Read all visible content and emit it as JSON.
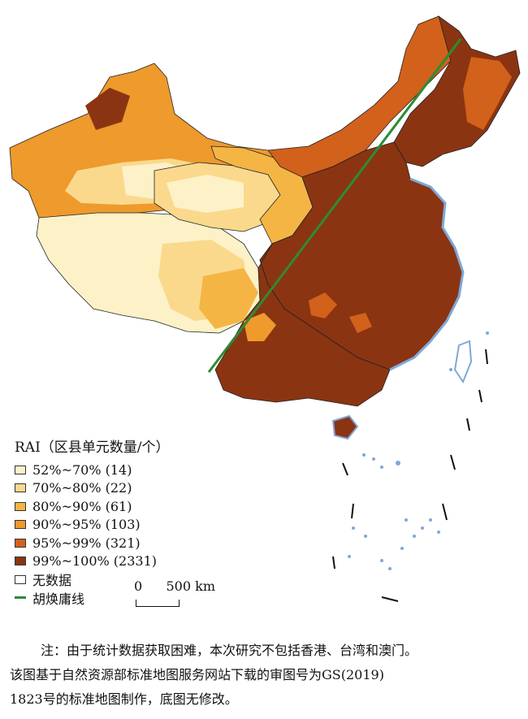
{
  "legend": {
    "title": "RAI（区县单元数量/个）",
    "classes": [
      {
        "label": "52%~70% (14)",
        "color": "#fdf1c8"
      },
      {
        "label": "70%~80% (22)",
        "color": "#fad98d"
      },
      {
        "label": "80%~90% (61)",
        "color": "#f4b545"
      },
      {
        "label": "90%~95% (103)",
        "color": "#ee9a2c"
      },
      {
        "label": "95%~99% (321)",
        "color": "#d2611b"
      },
      {
        "label": "99%~100% (2331)",
        "color": "#8b3412"
      }
    ],
    "nodata_label": "无数据",
    "nodata_color": "#ffffff",
    "line_label": "胡焕庸线",
    "line_color": "#2e8b34"
  },
  "scale": {
    "zero": "0",
    "distance": "500 km"
  },
  "note": {
    "line1": "注：由于统计数据获取困难，本次研究不包括香港、台湾和澳门。",
    "line2": "该图基于自然资源部标准地图服务网站下载的审图号为GS(2019)",
    "line3": "1823号的标准地图制作，底图无修改。"
  },
  "map_colors": {
    "water": "#7fa8d8",
    "border": "#222222"
  }
}
